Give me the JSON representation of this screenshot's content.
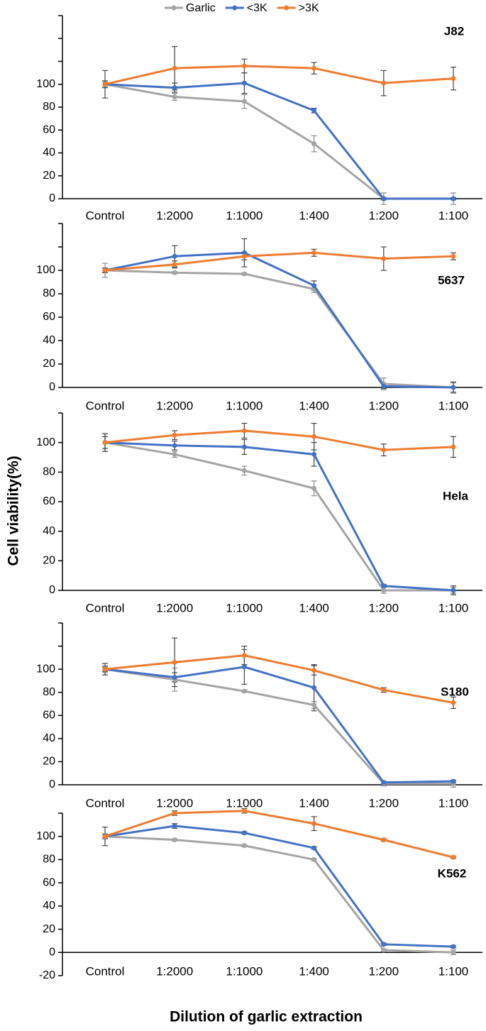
{
  "ylabel": "Cell viability(%)",
  "xlabel": "Dilution of garlic extraction",
  "chart_data": [
    {
      "type": "line",
      "title": "J82",
      "categories": [
        "Control",
        "1:2000",
        "1:1000",
        "1:400",
        "1:200",
        "1:100"
      ],
      "ylim": [
        0,
        160
      ],
      "yticks": [
        0,
        20,
        40,
        60,
        80,
        100
      ],
      "unlabeled_yticks": [
        120,
        140,
        160
      ],
      "series": [
        {
          "name": "Garlic",
          "color": "#a5a5a5",
          "values": [
            100,
            89,
            85,
            48,
            0,
            0
          ],
          "errors": [
            2,
            3,
            6,
            7,
            5,
            5
          ]
        },
        {
          "name": "<3K",
          "color": "#4472c4",
          "values": [
            100,
            97,
            101,
            77,
            0,
            0
          ],
          "errors": [
            3,
            4,
            9,
            2,
            1,
            1
          ]
        },
        {
          "name": ">3K",
          "color": "#ed7d31",
          "values": [
            100,
            114,
            116,
            114,
            101,
            105
          ],
          "errors": [
            12,
            19,
            6,
            5,
            11,
            10
          ]
        }
      ]
    },
    {
      "type": "line",
      "title": "5637",
      "categories": [
        "Control",
        "1:2000",
        "1:1000",
        "1:400",
        "1:200",
        "1:100"
      ],
      "ylim": [
        0,
        140
      ],
      "yticks": [
        0,
        20,
        40,
        60,
        80,
        100
      ],
      "unlabeled_yticks": [
        120,
        140
      ],
      "series": [
        {
          "name": "Garlic",
          "color": "#a5a5a5",
          "values": [
            100,
            98,
            97,
            84,
            3,
            0
          ],
          "errors": [
            6,
            1,
            1,
            3,
            5,
            5
          ]
        },
        {
          "name": "<3K",
          "color": "#4472c4",
          "values": [
            100,
            112,
            115,
            87,
            1,
            0
          ],
          "errors": [
            2,
            9,
            12,
            4,
            2,
            4
          ]
        },
        {
          "name": ">3K",
          "color": "#ed7d31",
          "values": [
            100,
            105,
            112,
            115,
            110,
            112
          ],
          "errors": [
            2,
            3,
            3,
            3,
            10,
            3
          ]
        }
      ]
    },
    {
      "type": "line",
      "title": "Hela",
      "categories": [
        "Control",
        "1:2000",
        "1:1000",
        "1:400",
        "1:200",
        "1:100"
      ],
      "ylim": [
        0,
        120
      ],
      "yticks": [
        0,
        20,
        40,
        60,
        80,
        100
      ],
      "unlabeled_yticks": [
        120
      ],
      "series": [
        {
          "name": "Garlic",
          "color": "#a5a5a5",
          "values": [
            100,
            92,
            81,
            69,
            0,
            0
          ],
          "errors": [
            6,
            2,
            3,
            5,
            2,
            2
          ]
        },
        {
          "name": "<3K",
          "color": "#4472c4",
          "values": [
            100,
            98,
            97,
            92,
            3,
            0
          ],
          "errors": [
            4,
            3,
            5,
            8,
            1,
            3
          ]
        },
        {
          "name": ">3K",
          "color": "#ed7d31",
          "values": [
            100,
            105,
            108,
            104,
            95,
            97
          ],
          "errors": [
            6,
            3,
            5,
            9,
            4,
            7
          ]
        }
      ]
    },
    {
      "type": "line",
      "title": "S180",
      "categories": [
        "Control",
        "1:2000",
        "1:1000",
        "1:400",
        "1:200",
        "1:100"
      ],
      "ylim": [
        0,
        140
      ],
      "yticks": [
        0,
        20,
        40,
        60,
        80,
        100
      ],
      "unlabeled_yticks": [
        120,
        140
      ],
      "series": [
        {
          "name": "Garlic",
          "color": "#a5a5a5",
          "values": [
            100,
            91,
            81,
            69,
            1,
            1
          ],
          "errors": [
            3,
            10,
            1,
            3,
            2,
            3
          ]
        },
        {
          "name": "<3K",
          "color": "#4472c4",
          "values": [
            100,
            93,
            102,
            84,
            2,
            3
          ],
          "errors": [
            2,
            4,
            15,
            20,
            1,
            1
          ]
        },
        {
          "name": ">3K",
          "color": "#ed7d31",
          "values": [
            100,
            106,
            112,
            99,
            82,
            71
          ],
          "errors": [
            5,
            21,
            8,
            4,
            2,
            5
          ]
        }
      ]
    },
    {
      "type": "line",
      "title": "K562",
      "categories": [
        "Control",
        "1:2000",
        "1:1000",
        "1:400",
        "1:200",
        "1:100"
      ],
      "ylim": [
        -20,
        120
      ],
      "yticks": [
        -20,
        0,
        20,
        40,
        60,
        80,
        100
      ],
      "unlabeled_yticks": [
        120
      ],
      "series": [
        {
          "name": "Garlic",
          "color": "#a5a5a5",
          "values": [
            100,
            97,
            92,
            80,
            2,
            0
          ],
          "errors": [
            2,
            1,
            1,
            1,
            1,
            2
          ]
        },
        {
          "name": "<3K",
          "color": "#4472c4",
          "values": [
            100,
            109,
            103,
            90,
            7,
            5
          ],
          "errors": [
            2,
            2,
            1,
            1,
            1,
            1
          ]
        },
        {
          "name": ">3K",
          "color": "#ed7d31",
          "values": [
            100,
            120,
            122,
            111,
            97,
            82
          ],
          "errors": [
            8,
            2,
            2,
            6,
            1,
            1
          ]
        }
      ]
    }
  ]
}
